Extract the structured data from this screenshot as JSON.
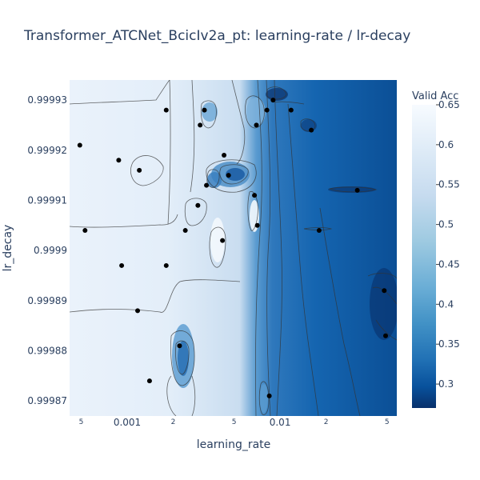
{
  "chart_data": {
    "type": "contour",
    "title": "Transformer_ATCNet_BcicIv2a_pt: learning-rate / lr-decay",
    "xlabel": "learning_rate",
    "ylabel": "lr_decay",
    "x_scale": "log",
    "xlim": [
      0.00042,
      0.058
    ],
    "ylim": [
      0.999867,
      0.999934
    ],
    "x_ticks": [
      {
        "value": 0.0005,
        "label": "5",
        "minor": true
      },
      {
        "value": 0.001,
        "label": "0.001",
        "minor": false
      },
      {
        "value": 0.002,
        "label": "2",
        "minor": true
      },
      {
        "value": 0.005,
        "label": "5",
        "minor": true
      },
      {
        "value": 0.01,
        "label": "0.01",
        "minor": false
      },
      {
        "value": 0.02,
        "label": "2",
        "minor": true
      },
      {
        "value": 0.05,
        "label": "5",
        "minor": true
      }
    ],
    "y_ticks": [
      {
        "value": 0.99987,
        "label": "0.99987"
      },
      {
        "value": 0.99988,
        "label": "0.99988"
      },
      {
        "value": 0.99989,
        "label": "0.99989"
      },
      {
        "value": 0.9999,
        "label": "0.9999"
      },
      {
        "value": 0.99991,
        "label": "0.99991"
      },
      {
        "value": 0.99992,
        "label": "0.99992"
      },
      {
        "value": 0.99993,
        "label": "0.99993"
      }
    ],
    "colorbar": {
      "title": "Valid Acc",
      "range": [
        0.27,
        0.65
      ],
      "ticks": [
        {
          "value": 0.65,
          "label": "0.65"
        },
        {
          "value": 0.6,
          "label": "0.6"
        },
        {
          "value": 0.55,
          "label": "0.55"
        },
        {
          "value": 0.5,
          "label": "0.5"
        },
        {
          "value": 0.45,
          "label": "0.45"
        },
        {
          "value": 0.4,
          "label": "0.4"
        },
        {
          "value": 0.35,
          "label": "0.35"
        },
        {
          "value": 0.3,
          "label": "0.3"
        }
      ],
      "colorscale": [
        "#08306b",
        "#08519c",
        "#2171b5",
        "#4292c6",
        "#6baed6",
        "#9ecae1",
        "#c6dbef",
        "#deebf7",
        "#f7fbff"
      ]
    },
    "points": [
      {
        "x": 0.00049,
        "y": 0.999921,
        "acc": 0.6
      },
      {
        "x": 0.00053,
        "y": 0.999904,
        "acc": 0.62
      },
      {
        "x": 0.00088,
        "y": 0.999918,
        "acc": 0.61
      },
      {
        "x": 0.00092,
        "y": 0.999897,
        "acc": 0.62
      },
      {
        "x": 0.00117,
        "y": 0.999888,
        "acc": 0.6
      },
      {
        "x": 0.0012,
        "y": 0.999916,
        "acc": 0.58
      },
      {
        "x": 0.0014,
        "y": 0.999874,
        "acc": 0.6
      },
      {
        "x": 0.0018,
        "y": 0.999928,
        "acc": 0.6
      },
      {
        "x": 0.0018,
        "y": 0.999897,
        "acc": 0.6
      },
      {
        "x": 0.0022,
        "y": 0.999881,
        "acc": 0.42
      },
      {
        "x": 0.0024,
        "y": 0.999904,
        "acc": 0.58
      },
      {
        "x": 0.0029,
        "y": 0.999909,
        "acc": 0.56
      },
      {
        "x": 0.003,
        "y": 0.999925,
        "acc": 0.5
      },
      {
        "x": 0.0032,
        "y": 0.999928,
        "acc": 0.45
      },
      {
        "x": 0.0033,
        "y": 0.999913,
        "acc": 0.45
      },
      {
        "x": 0.0042,
        "y": 0.999902,
        "acc": 0.62
      },
      {
        "x": 0.0043,
        "y": 0.999919,
        "acc": 0.45
      },
      {
        "x": 0.0046,
        "y": 0.999915,
        "acc": 0.42
      },
      {
        "x": 0.0068,
        "y": 0.999911,
        "acc": 0.55
      },
      {
        "x": 0.0071,
        "y": 0.999905,
        "acc": 0.6
      },
      {
        "x": 0.007,
        "y": 0.999925,
        "acc": 0.5
      },
      {
        "x": 0.0082,
        "y": 0.999928,
        "acc": 0.45
      },
      {
        "x": 0.0085,
        "y": 0.999871,
        "acc": 0.55
      },
      {
        "x": 0.009,
        "y": 0.99993,
        "acc": 0.33
      },
      {
        "x": 0.0118,
        "y": 0.999928,
        "acc": 0.33
      },
      {
        "x": 0.016,
        "y": 0.999924,
        "acc": 0.33
      },
      {
        "x": 0.018,
        "y": 0.999904,
        "acc": 0.33
      },
      {
        "x": 0.032,
        "y": 0.999912,
        "acc": 0.3
      },
      {
        "x": 0.048,
        "y": 0.999892,
        "acc": 0.3
      },
      {
        "x": 0.049,
        "y": 0.999883,
        "acc": 0.3
      }
    ]
  }
}
